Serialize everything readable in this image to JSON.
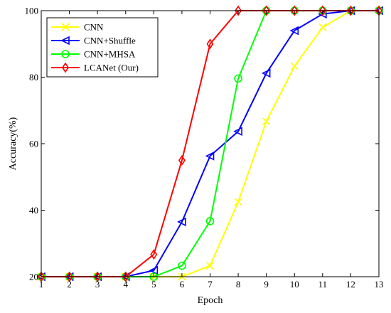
{
  "chart_data": {
    "type": "line",
    "title": "",
    "xlabel": "Epoch",
    "ylabel": "Accuracy(%)",
    "xlim": [
      1,
      13
    ],
    "ylim": [
      20,
      100
    ],
    "x": [
      1,
      2,
      3,
      4,
      5,
      6,
      7,
      8,
      9,
      10,
      11,
      12,
      13
    ],
    "xticks": [
      "1",
      "2",
      "3",
      "4",
      "5",
      "6",
      "7",
      "8",
      "9",
      "10",
      "11",
      "12",
      "13"
    ],
    "yticks": [
      "20",
      "40",
      "60",
      "80",
      "100"
    ],
    "grid": false,
    "legend_position": "top-left",
    "series": [
      {
        "name": "CNN",
        "color": "#ffff00",
        "marker": "x",
        "values": [
          20,
          20,
          20,
          20,
          20,
          20,
          23.3,
          42.5,
          66.7,
          83.3,
          95,
          100,
          100
        ]
      },
      {
        "name": "CNN+Shuffle",
        "color": "#0000ff",
        "marker": "triangle-left",
        "values": [
          20,
          20,
          20,
          20,
          21.9,
          36.5,
          56.3,
          63.7,
          81.2,
          94,
          99,
          100,
          100
        ]
      },
      {
        "name": "CNN+MHSA",
        "color": "#00ff00",
        "marker": "circle",
        "values": [
          20,
          20,
          20,
          20,
          20,
          23.3,
          36.7,
          79.6,
          100,
          100,
          100,
          100,
          100
        ]
      },
      {
        "name": "LCANet (Our)",
        "color": "#ff0000",
        "marker": "diamond",
        "values": [
          20,
          20,
          20,
          20,
          26.7,
          55,
          90,
          100,
          100,
          100,
          100,
          100,
          100
        ]
      }
    ]
  }
}
